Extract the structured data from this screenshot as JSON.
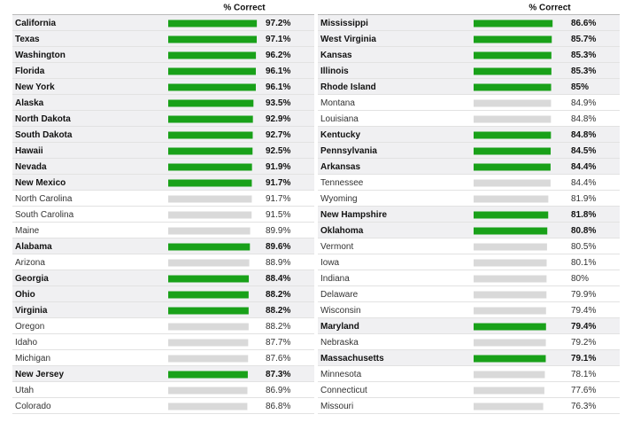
{
  "chart_data": [
    {
      "type": "bar",
      "column_title": "% Correct",
      "categories": [
        "California",
        "Texas",
        "Washington",
        "Florida",
        "New York",
        "Alaska",
        "North Dakota",
        "South Dakota",
        "Hawaii",
        "Nevada",
        "New Mexico",
        "North Carolina",
        "South Carolina",
        "Maine",
        "Alabama",
        "Arizona",
        "Georgia",
        "Ohio",
        "Virginia",
        "Oregon",
        "Idaho",
        "Michigan",
        "New Jersey",
        "Utah",
        "Colorado"
      ],
      "values": [
        97.2,
        97.1,
        96.2,
        96.1,
        96.1,
        93.5,
        92.9,
        92.7,
        92.5,
        91.9,
        91.7,
        91.7,
        91.5,
        89.9,
        89.6,
        88.9,
        88.4,
        88.2,
        88.2,
        88.2,
        87.7,
        87.6,
        87.3,
        86.9,
        86.8
      ],
      "value_labels": [
        "97.2%",
        "97.1%",
        "96.2%",
        "96.1%",
        "96.1%",
        "93.5%",
        "92.9%",
        "92.7%",
        "92.5%",
        "91.9%",
        "91.7%",
        "91.7%",
        "91.5%",
        "89.9%",
        "89.6%",
        "88.9%",
        "88.4%",
        "88.2%",
        "88.2%",
        "88.2%",
        "87.7%",
        "87.6%",
        "87.3%",
        "86.9%",
        "86.8%"
      ],
      "highlighted": [
        true,
        true,
        true,
        true,
        true,
        true,
        true,
        true,
        true,
        true,
        true,
        false,
        false,
        false,
        true,
        false,
        true,
        true,
        true,
        false,
        false,
        false,
        true,
        false,
        false
      ],
      "highlight_color": "#19a119",
      "color": "#d9d9d9"
    },
    {
      "type": "bar",
      "column_title": "% Correct",
      "categories": [
        "Mississippi",
        "West Virginia",
        "Kansas",
        "Illinois",
        "Rhode Island",
        "Montana",
        "Louisiana",
        "Kentucky",
        "Pennsylvania",
        "Arkansas",
        "Tennessee",
        "Wyoming",
        "New Hampshire",
        "Oklahoma",
        "Vermont",
        "Iowa",
        "Indiana",
        "Delaware",
        "Wisconsin",
        "Maryland",
        "Nebraska",
        "Massachusetts",
        "Minnesota",
        "Connecticut",
        "Missouri"
      ],
      "values": [
        86.6,
        85.7,
        85.3,
        85.3,
        85,
        84.9,
        84.8,
        84.8,
        84.5,
        84.4,
        84.4,
        81.9,
        81.8,
        80.8,
        80.5,
        80.1,
        80,
        79.9,
        79.4,
        79.4,
        79.2,
        79.1,
        78.1,
        77.6,
        76.3
      ],
      "value_labels": [
        "86.6%",
        "85.7%",
        "85.3%",
        "85.3%",
        "85%",
        "84.9%",
        "84.8%",
        "84.8%",
        "84.5%",
        "84.4%",
        "84.4%",
        "81.9%",
        "81.8%",
        "80.8%",
        "80.5%",
        "80.1%",
        "80%",
        "79.9%",
        "79.4%",
        "79.4%",
        "79.2%",
        "79.1%",
        "78.1%",
        "77.6%",
        "76.3%"
      ],
      "highlighted": [
        true,
        true,
        true,
        true,
        true,
        false,
        false,
        true,
        true,
        true,
        false,
        false,
        true,
        true,
        false,
        false,
        false,
        false,
        false,
        true,
        false,
        true,
        false,
        false,
        false
      ],
      "highlight_color": "#19a119",
      "color": "#d9d9d9"
    }
  ]
}
